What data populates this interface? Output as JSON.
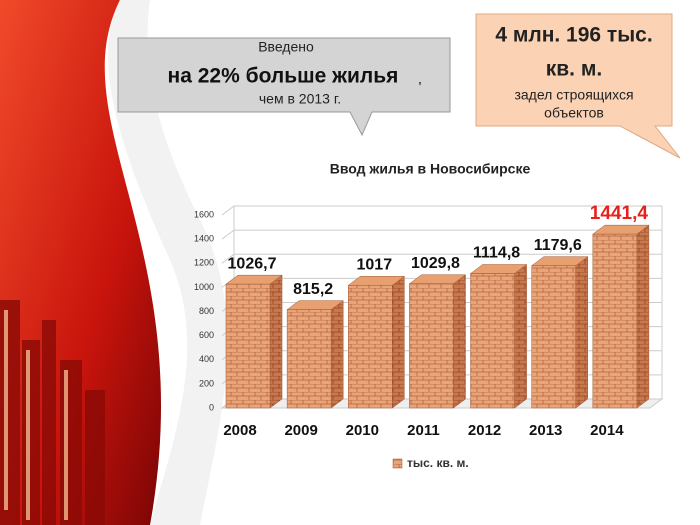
{
  "chart_data": {
    "type": "bar3d",
    "title": "Ввод жилья в Новосибирске",
    "categories": [
      "2008",
      "2009",
      "2010",
      "2011",
      "2012",
      "2013",
      "2014"
    ],
    "series": [
      {
        "name": "тыс. кв. м.",
        "color": "#e8a070",
        "values": [
          1026.7,
          815.2,
          1017,
          1029.8,
          1114.8,
          1179.6,
          1441.4
        ],
        "value_labels": [
          "1026,7",
          "815,2",
          "1017",
          "1029,8",
          "1114,8",
          "1179,6",
          "1441,4"
        ]
      }
    ],
    "ylim": [
      0,
      1600
    ],
    "yticks": [
      0,
      200,
      400,
      600,
      800,
      1000,
      1200,
      1400,
      1600
    ],
    "grid": true,
    "highlight_color": "#e8201c"
  },
  "callout_left": {
    "line1": "Введено",
    "line2": "на 22% больше жилья",
    "comma": ",",
    "line3": "чем в 2013 г."
  },
  "callout_right": {
    "line1": "4 млн. 196 тыс.",
    "line2": "кв. м.",
    "line3": "задел строящихся",
    "line4": "объектов"
  }
}
